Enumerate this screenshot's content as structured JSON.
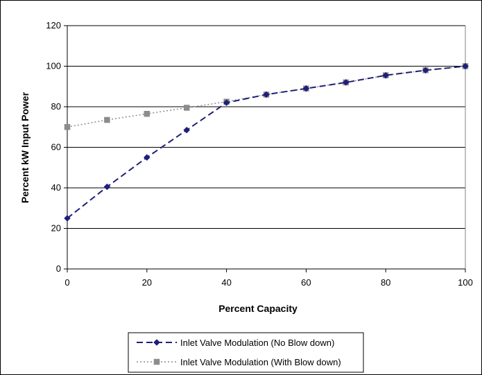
{
  "chart_data": {
    "type": "line",
    "title": "",
    "xlabel": "Percent Capacity",
    "ylabel": "Percent kW Input Power",
    "xlim": [
      0,
      100
    ],
    "ylim": [
      0,
      120
    ],
    "x_ticks": [
      0,
      20,
      40,
      60,
      80,
      100
    ],
    "y_ticks": [
      0,
      20,
      40,
      60,
      80,
      100,
      120
    ],
    "grid": "horizontal major gridlines",
    "legend_position": "bottom",
    "series": [
      {
        "name": "Inlet Valve Modulation (No Blow down)",
        "color": "#1f1f7a",
        "marker": "diamond",
        "line_style": "dashed",
        "x": [
          0,
          10,
          20,
          30,
          40,
          50,
          60,
          70,
          80,
          90,
          100
        ],
        "y": [
          25,
          40.5,
          55,
          68.5,
          82,
          86,
          89,
          92,
          95.5,
          98,
          100
        ]
      },
      {
        "name": "Inlet Valve Modulation (With Blow down)",
        "color": "#8c8c8c",
        "marker": "square",
        "line_style": "dotted",
        "x": [
          0,
          10,
          20,
          30,
          40,
          50,
          60,
          70,
          80,
          90,
          100
        ],
        "y": [
          70,
          73.5,
          76.5,
          79.5,
          82.5,
          86,
          89,
          92,
          95.5,
          98,
          100
        ]
      }
    ]
  }
}
